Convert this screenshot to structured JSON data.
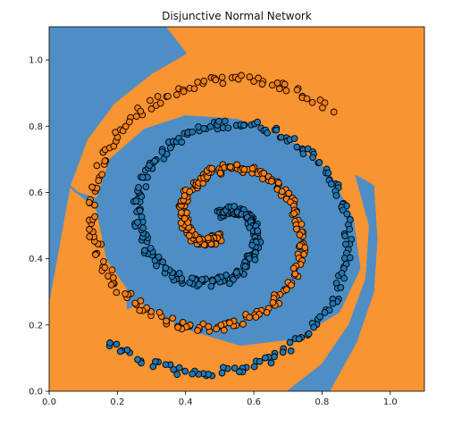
{
  "chart_data": {
    "type": "scatter",
    "title": "Disjunctive Normal Network",
    "xlabel": "",
    "ylabel": "",
    "xlim": [
      0.0,
      1.1
    ],
    "ylim": [
      0.0,
      1.1
    ],
    "x_ticks": [
      0.0,
      0.2,
      0.4,
      0.6,
      0.8,
      1.0
    ],
    "x_tick_labels": [
      "0.0",
      "0.2",
      "0.4",
      "0.6",
      "0.8",
      "1.0"
    ],
    "y_ticks": [
      0.0,
      0.2,
      0.4,
      0.6,
      0.8,
      1.0
    ],
    "y_tick_labels": [
      "0.0",
      "0.2",
      "0.4",
      "0.6",
      "0.8",
      "1.0"
    ],
    "grid": false,
    "legend": "none",
    "colors": {
      "class_0": "#1f77b4",
      "class_1": "#ff7f0e",
      "region_0": "#4f8ec4",
      "region_1": "#f89432",
      "marker_edge": "#000000"
    },
    "background": "decision regions of a two-class classifier over two interleaved spirals",
    "decision_region_class_0": [
      [
        [
          0.0,
          0.28
        ],
        [
          0.03,
          0.45
        ],
        [
          0.06,
          0.62
        ],
        [
          0.11,
          0.76
        ],
        [
          0.19,
          0.87
        ],
        [
          0.3,
          0.96
        ],
        [
          0.4,
          1.02
        ],
        [
          0.34,
          1.1
        ],
        [
          0.0,
          1.1
        ]
      ],
      [
        [
          0.06,
          0.62
        ],
        [
          0.14,
          0.55
        ],
        [
          0.17,
          0.4
        ],
        [
          0.25,
          0.28
        ],
        [
          0.4,
          0.19
        ],
        [
          0.56,
          0.14
        ],
        [
          0.72,
          0.16
        ],
        [
          0.85,
          0.24
        ],
        [
          0.91,
          0.37
        ],
        [
          0.89,
          0.52
        ],
        [
          0.82,
          0.66
        ],
        [
          0.7,
          0.76
        ],
        [
          0.55,
          0.82
        ],
        [
          0.4,
          0.83
        ],
        [
          0.28,
          0.79
        ],
        [
          0.18,
          0.7
        ],
        [
          0.14,
          0.58
        ],
        [
          0.08,
          0.6
        ]
      ],
      [
        [
          0.23,
          0.73
        ],
        [
          0.23,
          0.25
        ],
        [
          0.33,
          0.3
        ],
        [
          0.5,
          0.33
        ],
        [
          0.67,
          0.34
        ],
        [
          0.8,
          0.39
        ],
        [
          0.77,
          0.55
        ],
        [
          0.67,
          0.66
        ],
        [
          0.53,
          0.71
        ],
        [
          0.39,
          0.72
        ],
        [
          0.28,
          0.7
        ]
      ],
      [
        [
          0.34,
          0.58
        ],
        [
          0.44,
          0.67
        ],
        [
          0.54,
          0.63
        ],
        [
          0.62,
          0.56
        ],
        [
          0.63,
          0.45
        ],
        [
          0.56,
          0.39
        ],
        [
          0.44,
          0.39
        ],
        [
          0.37,
          0.46
        ]
      ],
      [
        [
          0.7,
          0.0
        ],
        [
          0.8,
          0.08
        ],
        [
          0.88,
          0.2
        ],
        [
          0.93,
          0.34
        ],
        [
          0.94,
          0.5
        ],
        [
          0.9,
          0.65
        ],
        [
          0.95,
          0.62
        ],
        [
          0.96,
          0.46
        ],
        [
          0.95,
          0.3
        ],
        [
          0.9,
          0.15
        ],
        [
          0.82,
          0.0
        ]
      ]
    ],
    "series": [
      {
        "class": "class_0",
        "spiral": {
          "center": [
            0.5,
            0.5
          ],
          "t_start": 0.0,
          "t_end": 10.2,
          "r_start": 0.03,
          "r_growth": 0.0435,
          "phase": 1.6,
          "direction": -1,
          "points": 360,
          "jitter": 0.013
        }
      },
      {
        "class": "class_1",
        "spiral": {
          "center": [
            0.5,
            0.5
          ],
          "t_start": 0.0,
          "t_end": 10.2,
          "r_start": 0.03,
          "r_growth": 0.0435,
          "phase": 4.74,
          "direction": -1,
          "points": 360,
          "jitter": 0.013
        }
      }
    ]
  }
}
